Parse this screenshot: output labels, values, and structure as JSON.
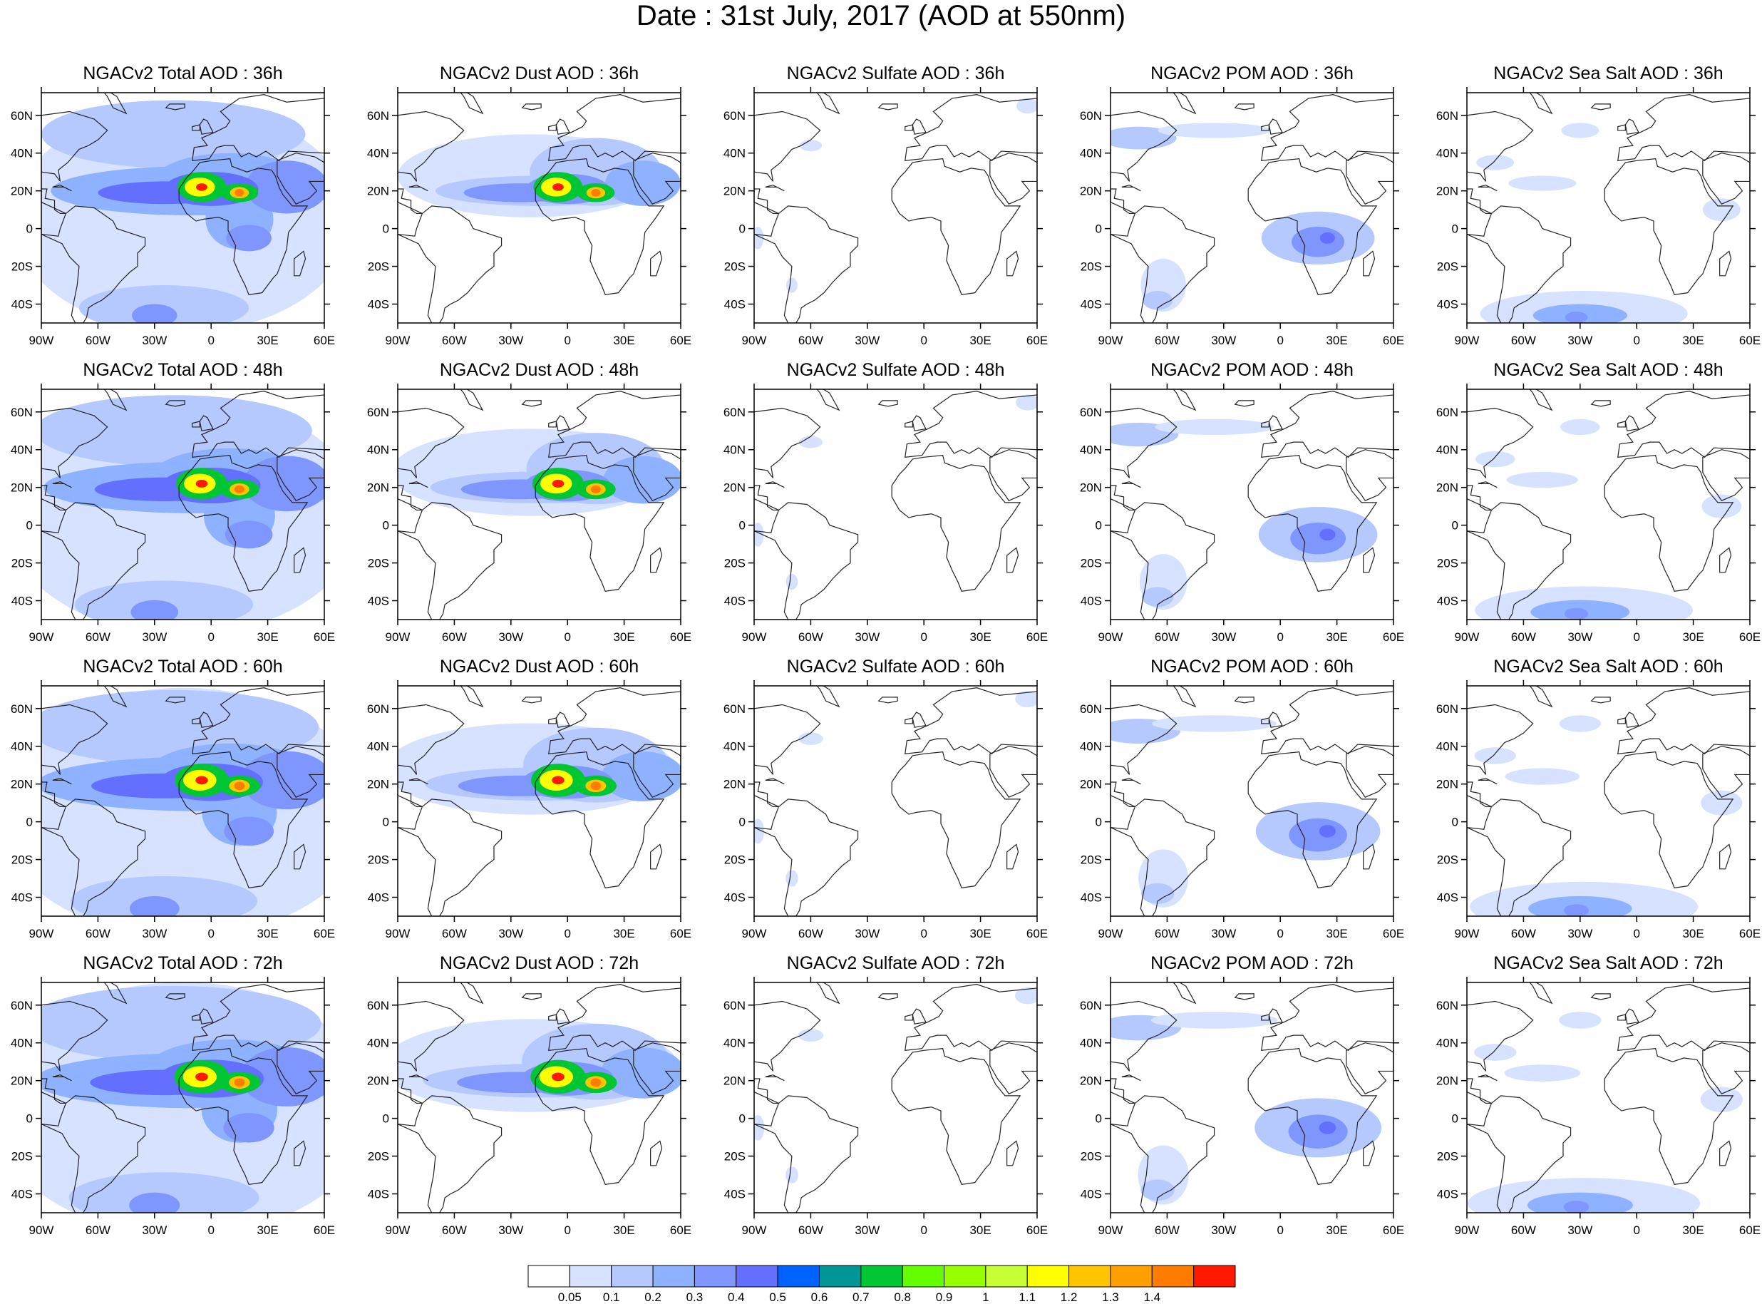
{
  "title": "Date : 31st July, 2017 (AOD at 550nm)",
  "rows": [
    "36h",
    "48h",
    "60h",
    "72h"
  ],
  "species": [
    {
      "key": "total",
      "label": "Total AOD"
    },
    {
      "key": "dust",
      "label": "Dust AOD"
    },
    {
      "key": "sulfate",
      "label": "Sulfate AOD"
    },
    {
      "key": "pom",
      "label": "POM AOD"
    },
    {
      "key": "seasalt",
      "label": "Sea Salt AOD"
    }
  ],
  "panel_titles": [
    [
      "NGACv2 Total AOD : 36h",
      "NGACv2 Dust AOD : 36h",
      "NGACv2 Sulfate AOD : 36h",
      "NGACv2 POM AOD : 36h",
      "NGACv2 Sea Salt AOD : 36h"
    ],
    [
      "NGACv2 Total AOD : 48h",
      "NGACv2 Dust AOD : 48h",
      "NGACv2 Sulfate AOD : 48h",
      "NGACv2 POM AOD : 48h",
      "NGACv2 Sea Salt AOD : 48h"
    ],
    [
      "NGACv2 Total AOD : 60h",
      "NGACv2 Dust AOD : 60h",
      "NGACv2 Sulfate AOD : 60h",
      "NGACv2 POM AOD : 60h",
      "NGACv2 Sea Salt AOD : 60h"
    ],
    [
      "NGACv2 Total AOD : 72h",
      "NGACv2 Dust AOD : 72h",
      "NGACv2 Sulfate AOD : 72h",
      "NGACv2 POM AOD : 72h",
      "NGACv2 Sea Salt  AOD : 72h"
    ]
  ],
  "map": {
    "lon_ticks": [
      "90W",
      "60W",
      "30W",
      "0",
      "30E",
      "60E"
    ],
    "lat_ticks": [
      "60N",
      "40N",
      "20N",
      "0",
      "20S",
      "40S"
    ]
  },
  "colorbar": {
    "colors": [
      "#ffffff",
      "#d6e2ff",
      "#b5c9ff",
      "#8eb2ff",
      "#7f96ff",
      "#6370ff",
      "#0063ff",
      "#009696",
      "#00c633",
      "#63ff00",
      "#96ff00",
      "#c6ff33",
      "#ffff00",
      "#ffc600",
      "#ffa000",
      "#ff7c00",
      "#ff1900"
    ],
    "labels": [
      "0.05",
      "0.1",
      "0.2",
      "0.3",
      "0.4",
      "0.5",
      "0.6",
      "0.7",
      "0.8",
      "0.9",
      "1",
      "1.1",
      "1.2",
      "1.3",
      "1.4"
    ]
  }
}
